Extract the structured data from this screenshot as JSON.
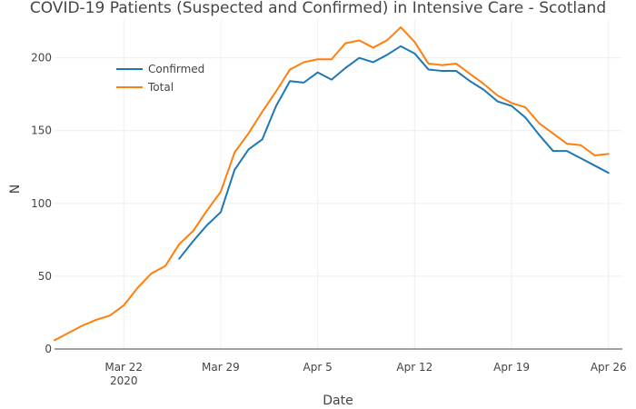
{
  "chart_data": {
    "type": "line",
    "title": "COVID-19 Patients (Suspected and Confirmed) in Intensive Care - Scotland",
    "xlabel": "Date",
    "ylabel": "N",
    "x_start_date": "2020-03-17",
    "x_end_date": "2020-04-27",
    "ylim": [
      0,
      226
    ],
    "x_ticks": [
      {
        "date": "2020-03-22",
        "label": "Mar 22",
        "sublabel": "2020"
      },
      {
        "date": "2020-03-29",
        "label": "Mar 29",
        "sublabel": ""
      },
      {
        "date": "2020-04-05",
        "label": "Apr 5",
        "sublabel": ""
      },
      {
        "date": "2020-04-12",
        "label": "Apr 12",
        "sublabel": ""
      },
      {
        "date": "2020-04-19",
        "label": "Apr 19",
        "sublabel": ""
      },
      {
        "date": "2020-04-26",
        "label": "Apr 26",
        "sublabel": ""
      }
    ],
    "y_ticks": [
      0,
      50,
      100,
      150,
      200
    ],
    "grid": true,
    "legend_position": "top-left",
    "series": [
      {
        "name": "Confirmed",
        "color": "#1f77b4",
        "points": [
          [
            "2020-03-26",
            62
          ],
          [
            "2020-03-27",
            74
          ],
          [
            "2020-03-28",
            85
          ],
          [
            "2020-03-29",
            94
          ],
          [
            "2020-03-30",
            123
          ],
          [
            "2020-03-31",
            137
          ],
          [
            "2020-04-01",
            144
          ],
          [
            "2020-04-02",
            167
          ],
          [
            "2020-04-03",
            184
          ],
          [
            "2020-04-04",
            183
          ],
          [
            "2020-04-05",
            190
          ],
          [
            "2020-04-06",
            185
          ],
          [
            "2020-04-07",
            193
          ],
          [
            "2020-04-08",
            200
          ],
          [
            "2020-04-09",
            197
          ],
          [
            "2020-04-10",
            202
          ],
          [
            "2020-04-11",
            208
          ],
          [
            "2020-04-12",
            203
          ],
          [
            "2020-04-13",
            192
          ],
          [
            "2020-04-14",
            191
          ],
          [
            "2020-04-15",
            191
          ],
          [
            "2020-04-16",
            184
          ],
          [
            "2020-04-17",
            178
          ],
          [
            "2020-04-18",
            170
          ],
          [
            "2020-04-19",
            167
          ],
          [
            "2020-04-20",
            159
          ],
          [
            "2020-04-21",
            147
          ],
          [
            "2020-04-22",
            136
          ],
          [
            "2020-04-23",
            136
          ],
          [
            "2020-04-24",
            131
          ],
          [
            "2020-04-25",
            126
          ],
          [
            "2020-04-26",
            121
          ]
        ]
      },
      {
        "name": "Total",
        "color": "#ff7f0e",
        "points": [
          [
            "2020-03-17",
            6
          ],
          [
            "2020-03-18",
            11
          ],
          [
            "2020-03-19",
            16
          ],
          [
            "2020-03-20",
            20
          ],
          [
            "2020-03-21",
            23
          ],
          [
            "2020-03-22",
            30
          ],
          [
            "2020-03-23",
            42
          ],
          [
            "2020-03-24",
            52
          ],
          [
            "2020-03-25",
            57
          ],
          [
            "2020-03-26",
            72
          ],
          [
            "2020-03-27",
            81
          ],
          [
            "2020-03-28",
            95
          ],
          [
            "2020-03-29",
            108
          ],
          [
            "2020-03-30",
            135
          ],
          [
            "2020-03-31",
            148
          ],
          [
            "2020-04-01",
            163
          ],
          [
            "2020-04-02",
            177
          ],
          [
            "2020-04-03",
            192
          ],
          [
            "2020-04-04",
            197
          ],
          [
            "2020-04-05",
            199
          ],
          [
            "2020-04-06",
            199
          ],
          [
            "2020-04-07",
            210
          ],
          [
            "2020-04-08",
            212
          ],
          [
            "2020-04-09",
            207
          ],
          [
            "2020-04-10",
            212
          ],
          [
            "2020-04-11",
            221
          ],
          [
            "2020-04-12",
            211
          ],
          [
            "2020-04-13",
            196
          ],
          [
            "2020-04-14",
            195
          ],
          [
            "2020-04-15",
            196
          ],
          [
            "2020-04-16",
            189
          ],
          [
            "2020-04-17",
            182
          ],
          [
            "2020-04-18",
            174
          ],
          [
            "2020-04-19",
            169
          ],
          [
            "2020-04-20",
            166
          ],
          [
            "2020-04-21",
            155
          ],
          [
            "2020-04-22",
            148
          ],
          [
            "2020-04-23",
            141
          ],
          [
            "2020-04-24",
            140
          ],
          [
            "2020-04-25",
            133
          ],
          [
            "2020-04-26",
            134
          ]
        ]
      }
    ]
  }
}
